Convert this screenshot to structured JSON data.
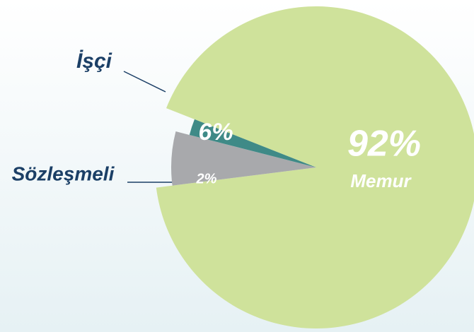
{
  "chart_data": {
    "type": "pie",
    "categories": [
      "Memur",
      "İşçi",
      "Sözleşmeli"
    ],
    "values": [
      92,
      6,
      2
    ],
    "value_labels": [
      "92%",
      "6%",
      "2%"
    ],
    "colors": [
      "#cfe29b",
      "#a8a9ac",
      "#3f8a87"
    ]
  }
}
